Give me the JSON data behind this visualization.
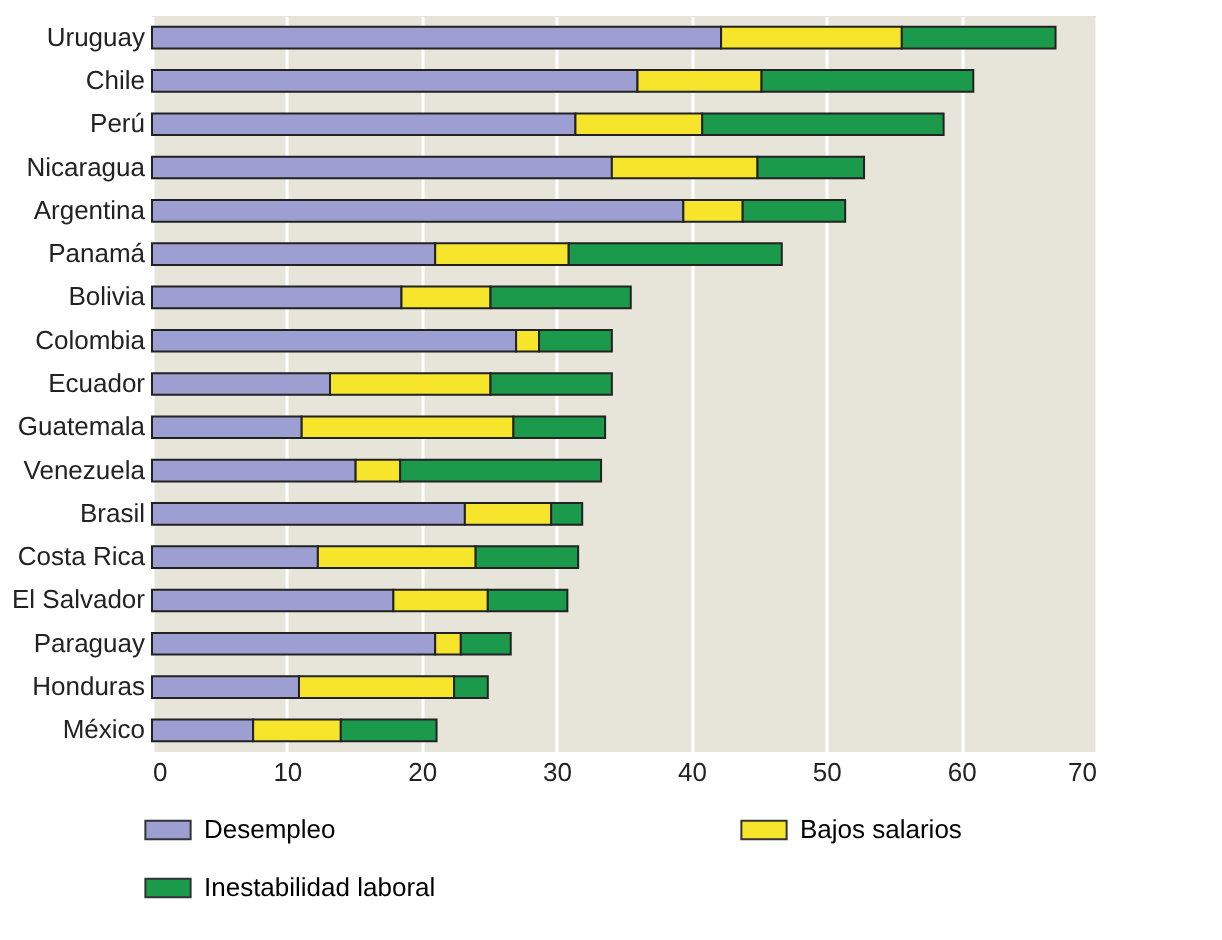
{
  "chart_data": {
    "type": "bar",
    "orientation": "horizontal",
    "stacked": true,
    "categories": [
      "Uruguay",
      "Chile",
      "Perú",
      "Nicaragua",
      "Argentina",
      "Panamá",
      "Bolivia",
      "Colombia",
      "Ecuador",
      "Guatemala",
      "Venezuela",
      "Brasil",
      "Costa Rica",
      "El Salvador",
      "Paraguay",
      "Honduras",
      "México"
    ],
    "series": [
      {
        "name": "Desempleo",
        "color": "#9d9ed2",
        "values": [
          42.2,
          36.0,
          31.4,
          34.1,
          39.4,
          21.0,
          18.5,
          27.0,
          13.2,
          11.1,
          15.1,
          23.2,
          12.3,
          17.9,
          21.0,
          10.9,
          7.5
        ]
      },
      {
        "name": "Bajos salarios",
        "color": "#f6e52a",
        "values": [
          13.4,
          9.2,
          9.4,
          10.8,
          4.4,
          9.9,
          6.6,
          1.7,
          11.9,
          15.7,
          3.3,
          6.4,
          11.7,
          7.0,
          1.9,
          11.5,
          6.5
        ]
      },
      {
        "name": "Inestabilidad laboral",
        "color": "#1a9a4a",
        "values": [
          11.4,
          15.7,
          17.9,
          7.9,
          7.6,
          15.8,
          10.4,
          5.4,
          9.0,
          6.8,
          14.9,
          2.3,
          7.6,
          5.9,
          3.7,
          2.5,
          7.1
        ]
      }
    ],
    "xlim": [
      0,
      70
    ],
    "xticks": [
      0,
      10,
      20,
      30,
      40,
      50,
      60,
      70
    ],
    "grid": "x",
    "legend": "bottom"
  }
}
